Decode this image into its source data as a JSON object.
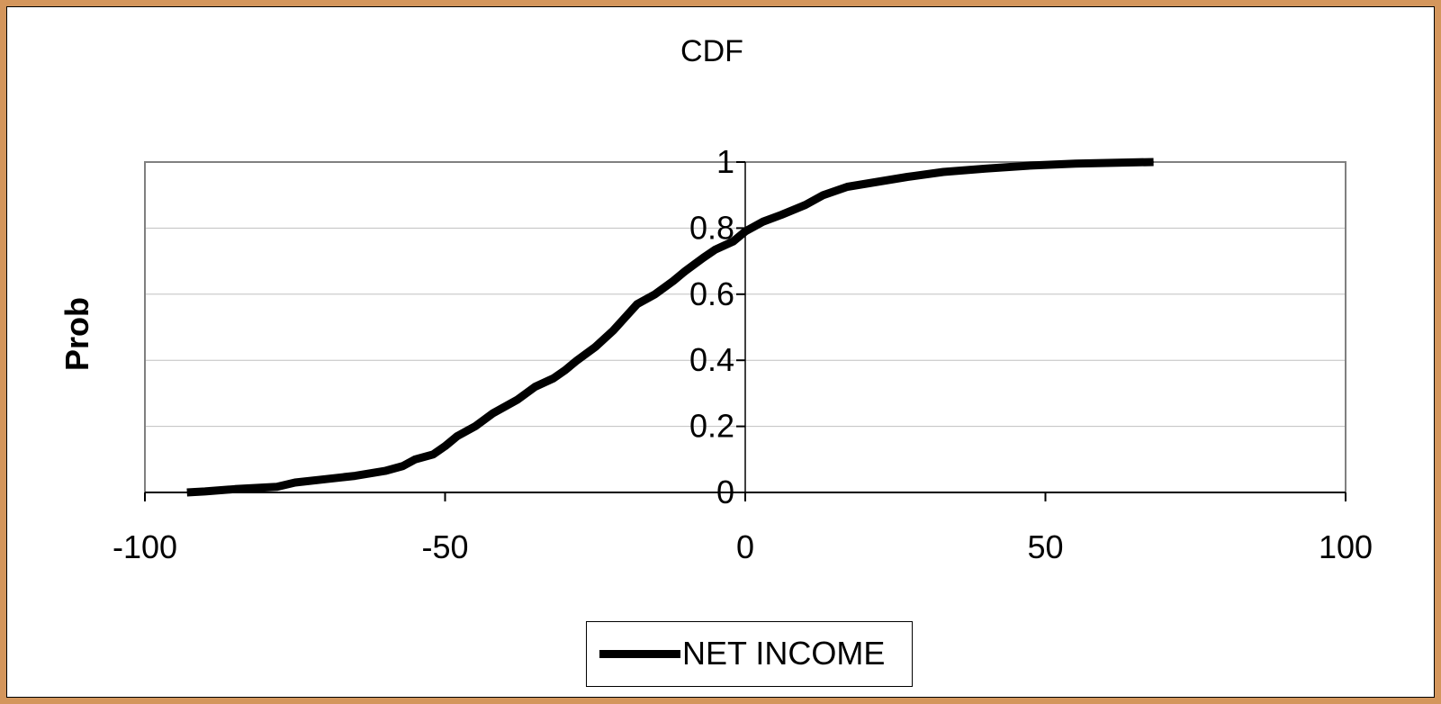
{
  "chart_data": {
    "type": "line",
    "title": "CDF",
    "xlabel": "",
    "ylabel": "Prob",
    "xlim": [
      -100,
      100
    ],
    "ylim": [
      0,
      1
    ],
    "x_ticks": [
      "-100",
      "-50",
      "0",
      "50",
      "100"
    ],
    "y_ticks": [
      "0",
      "0.2",
      "0.4",
      "0.6",
      "0.8",
      "1"
    ],
    "grid": "horizontal",
    "legend_position": "bottom",
    "series": [
      {
        "name": "NET INCOME",
        "color": "#000000",
        "points": [
          [
            -93,
            0.0
          ],
          [
            -90,
            0.003
          ],
          [
            -85,
            0.01
          ],
          [
            -78,
            0.017
          ],
          [
            -75,
            0.03
          ],
          [
            -70,
            0.04
          ],
          [
            -65,
            0.05
          ],
          [
            -60,
            0.065
          ],
          [
            -57,
            0.08
          ],
          [
            -55,
            0.1
          ],
          [
            -52,
            0.115
          ],
          [
            -50,
            0.14
          ],
          [
            -48,
            0.17
          ],
          [
            -45,
            0.2
          ],
          [
            -42,
            0.24
          ],
          [
            -38,
            0.28
          ],
          [
            -35,
            0.32
          ],
          [
            -32,
            0.345
          ],
          [
            -30,
            0.37
          ],
          [
            -28,
            0.4
          ],
          [
            -25,
            0.44
          ],
          [
            -22,
            0.49
          ],
          [
            -20,
            0.53
          ],
          [
            -18,
            0.57
          ],
          [
            -15,
            0.6
          ],
          [
            -12,
            0.64
          ],
          [
            -10,
            0.67
          ],
          [
            -7,
            0.71
          ],
          [
            -5,
            0.735
          ],
          [
            -2,
            0.76
          ],
          [
            0,
            0.79
          ],
          [
            3,
            0.82
          ],
          [
            6,
            0.84
          ],
          [
            10,
            0.87
          ],
          [
            13,
            0.9
          ],
          [
            17,
            0.925
          ],
          [
            22,
            0.94
          ],
          [
            27,
            0.955
          ],
          [
            33,
            0.97
          ],
          [
            40,
            0.98
          ],
          [
            48,
            0.99
          ],
          [
            55,
            0.995
          ],
          [
            62,
            0.998
          ],
          [
            68,
            1.0
          ]
        ]
      }
    ]
  }
}
